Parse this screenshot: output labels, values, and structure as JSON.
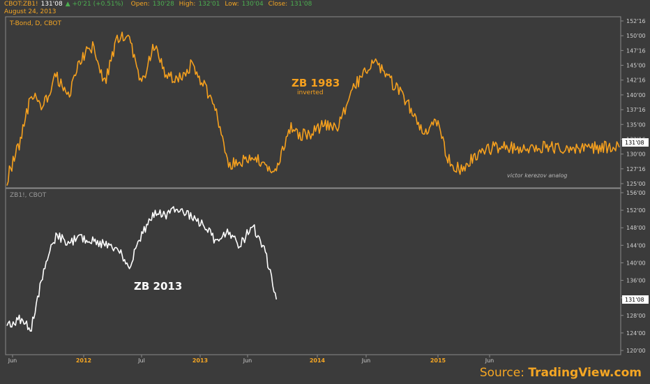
{
  "header": {
    "symbol": "CBOT:ZB1!",
    "last": "131'08",
    "change": "+0'21 (+0.51%)",
    "open_label": "Open:",
    "open": "130'28",
    "high_label": "High:",
    "high": "132'01",
    "low_label": "Low:",
    "low": "130'04",
    "close_label": "Close:",
    "close": "131'08",
    "date": "August 24, 2013"
  },
  "source": {
    "prefix": "Source:",
    "brand": "TradingView.com"
  },
  "colors": {
    "background": "#3b3b3b",
    "top_series": "#f5a01e",
    "bottom_series": "#ffffff",
    "grid": "#8a8a8a",
    "text": "#f5a623"
  },
  "chart_data": [
    {
      "type": "line",
      "title": "T-Bond, D, CBOT",
      "annotation": "ZB 1983",
      "annotation_sub": "inverted",
      "watermark": "victor kerezov analog",
      "last_label": "131'08",
      "y_ticks": [
        "152'16",
        "150'00",
        "147'16",
        "145'00",
        "142'16",
        "140'00",
        "137'16",
        "135'00",
        "132'16",
        "130'00",
        "127'16",
        "125'00"
      ],
      "ylim": [
        124.0,
        153.5
      ],
      "x_ticks": [
        "Jun",
        "2012",
        "Jul",
        "2013",
        "Jun",
        "2014",
        "Jun",
        "2015",
        "Jun"
      ],
      "series": [
        {
          "x": [
            0,
            2,
            4,
            6,
            8,
            10,
            12,
            14,
            16,
            18,
            20,
            22,
            24,
            26,
            28,
            30,
            32,
            34,
            36,
            38,
            40,
            42,
            44,
            46,
            48,
            50,
            52,
            54,
            56,
            58,
            60,
            62,
            64,
            66,
            68,
            70,
            72,
            74,
            76,
            78,
            80,
            82,
            84,
            86,
            88,
            90,
            92,
            94,
            96,
            98,
            100
          ],
          "values": [
            125.5,
            131.5,
            140.0,
            138.0,
            143.5,
            139.5,
            146.0,
            148.5,
            142.0,
            150.0,
            149.5,
            142.0,
            148.5,
            143.5,
            143.0,
            145.0,
            142.0,
            138.0,
            128.0,
            128.5,
            129.0,
            128.5,
            126.5,
            134.5,
            133.0,
            133.5,
            135.0,
            134.0,
            140.0,
            143.5,
            146.5,
            143.0,
            141.0,
            137.5,
            133.5,
            136.0,
            129.0,
            127.0,
            129.0,
            130.5,
            131.0,
            131.0,
            131.0,
            131.0,
            131.0,
            131.0,
            131.0,
            131.0,
            131.0,
            131.0,
            131.0
          ]
        }
      ]
    },
    {
      "type": "line",
      "title": "ZB1!, CBOT",
      "annotation": "ZB 2013",
      "last_label": "131'08",
      "y_ticks": [
        "156'00",
        "152'00",
        "148'00",
        "144'00",
        "140'00",
        "136'00",
        "132'00",
        "128'00",
        "124'00",
        "120'00"
      ],
      "ylim": [
        119.0,
        156.0
      ],
      "series": [
        {
          "x": [
            0,
            2,
            4,
            6,
            8,
            10,
            12,
            14,
            16,
            18,
            20,
            22,
            24,
            26,
            28,
            30,
            32,
            34,
            36,
            38,
            40,
            42,
            44
          ],
          "values": [
            125.0,
            127.0,
            125.0,
            138.0,
            145.5,
            144.0,
            145.0,
            144.5,
            143.5,
            142.5,
            139.0,
            146.0,
            150.5,
            150.0,
            151.5,
            150.0,
            148.0,
            144.5,
            146.5,
            143.0,
            148.0,
            143.0,
            131.3
          ]
        }
      ]
    }
  ]
}
